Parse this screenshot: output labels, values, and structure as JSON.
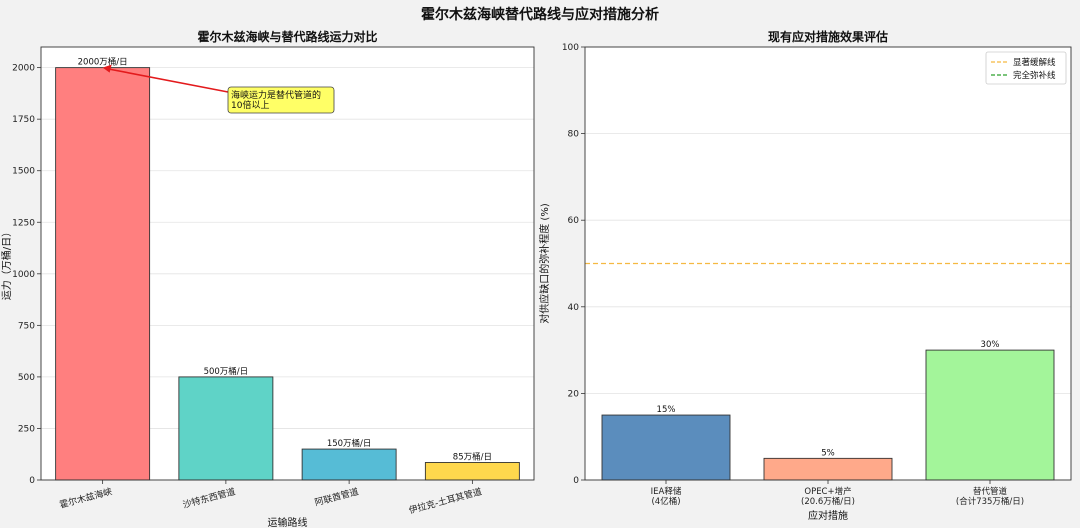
{
  "suptitle": "霍尔木兹海峡替代路线与应对措施分析",
  "chart_data": [
    {
      "type": "bar",
      "title": "霍尔木兹海峡与替代路线运力对比",
      "xlabel": "运输路线",
      "ylabel": "运力（万桶/日）",
      "categories": [
        "霍尔木兹海峡",
        "沙特东西管道",
        "阿联酋管道",
        "伊拉克-土耳其管道"
      ],
      "values": [
        2000,
        500,
        150,
        85
      ],
      "value_labels": [
        "2000万桶/日",
        "500万桶/日",
        "150万桶/日",
        "85万桶/日"
      ],
      "colors": [
        "#ff7f7f",
        "#5fd3c7",
        "#56bcd6",
        "#ffd84d"
      ],
      "ylim": [
        0,
        2100
      ],
      "yticks": [
        0,
        250,
        500,
        750,
        1000,
        1250,
        1500,
        1750,
        2000
      ],
      "grid": true,
      "annotation": {
        "text_lines": [
          "海峡运力是替代管道的",
          "10倍以上"
        ],
        "points_to_category": "霍尔木兹海峡",
        "points_to_value": 2000
      }
    },
    {
      "type": "bar",
      "title": "现有应对措施效果评估",
      "xlabel": "应对措施",
      "ylabel": "对供应缺口的弥补程度 (%)",
      "categories": [
        [
          "IEA释储",
          "(4亿桶)"
        ],
        [
          "OPEC+增产",
          "(20.6万桶/日)"
        ],
        [
          "替代管道",
          "(合计735万桶/日)"
        ]
      ],
      "values": [
        15,
        5,
        30
      ],
      "value_labels": [
        "15%",
        "5%",
        "30%"
      ],
      "colors": [
        "#5b8dbd",
        "#ffa98a",
        "#a3f59a"
      ],
      "ylim": [
        0,
        100
      ],
      "yticks": [
        0,
        20,
        40,
        60,
        80,
        100
      ],
      "grid": true,
      "reference_lines": [
        {
          "value": 50,
          "label": "显著缓解线",
          "color": "#f5b942"
        }
      ],
      "legend": {
        "placement": "top-right",
        "entries": [
          {
            "label": "显著缓解线",
            "color": "#f5b942"
          },
          {
            "label": "完全弥补线",
            "color": "#2ca02c"
          }
        ]
      }
    }
  ]
}
